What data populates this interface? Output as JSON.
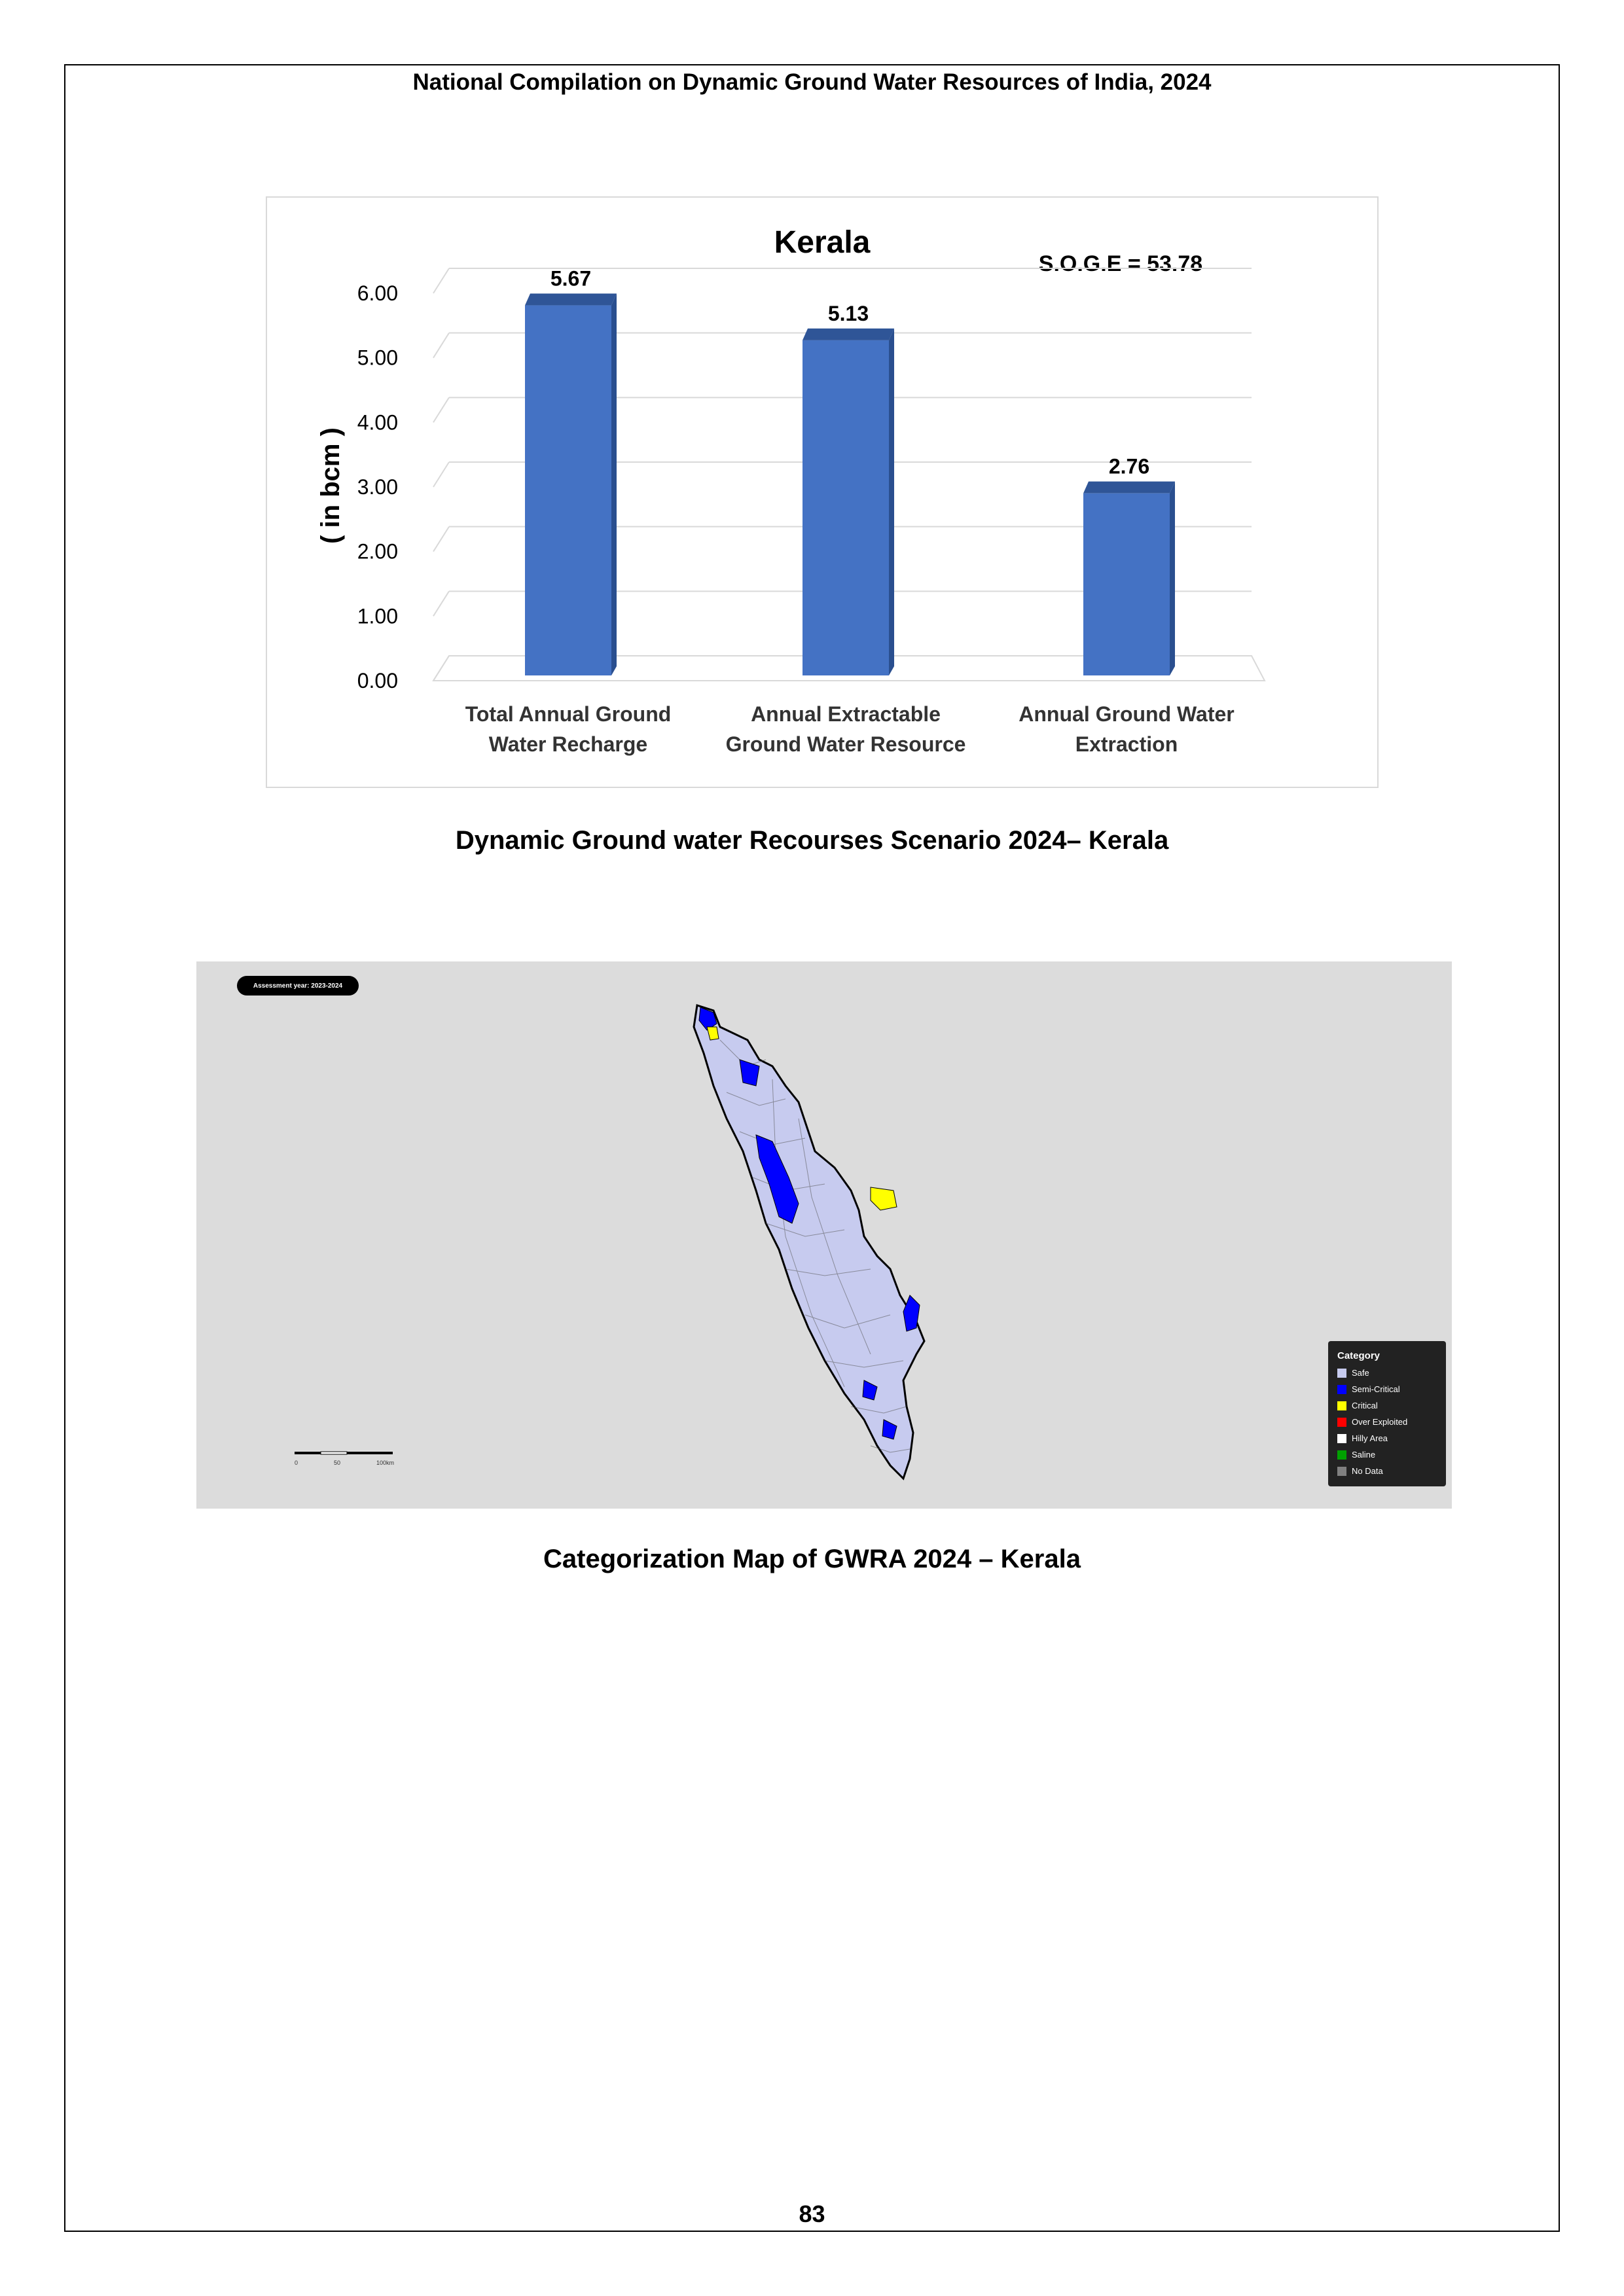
{
  "header": "National Compilation on Dynamic Ground Water Resources of India, 2024",
  "chart_data": {
    "type": "bar",
    "title": "Kerala",
    "annotation": "S.O.G.E = 53.78",
    "ylabel": "( in bcm )",
    "ylim": [
      0,
      6
    ],
    "yticks": [
      "0.00",
      "1.00",
      "2.00",
      "3.00",
      "4.00",
      "5.00",
      "6.00"
    ],
    "categories": [
      [
        "Total Annual  Ground",
        "Water Recharge"
      ],
      [
        "Annual Extractable",
        "Ground Water Resource"
      ],
      [
        "Annual Ground Water",
        "Extraction"
      ]
    ],
    "values": [
      5.67,
      5.13,
      2.76
    ],
    "value_labels": [
      "5.67",
      "5.13",
      "2.76"
    ],
    "colors": {
      "bar": "#4472c4",
      "bar_top": "#2f5597",
      "bar_side": "#2a4f8f",
      "grid": "#d9d9d9"
    }
  },
  "chart_caption": "Dynamic Ground water Recourses Scenario 2024– Kerala",
  "map": {
    "assessment_label": "Assessment year: 2023-2024",
    "legend_title": "Category",
    "legend": [
      {
        "label": "Safe",
        "color": "#c7cbef"
      },
      {
        "label": "Semi-Critical",
        "color": "#0000ff"
      },
      {
        "label": "Critical",
        "color": "#ffff00"
      },
      {
        "label": "Over Exploited",
        "color": "#ff0000"
      },
      {
        "label": "Hilly Area",
        "color": "#ffffff"
      },
      {
        "label": "Saline",
        "color": "#00a000"
      },
      {
        "label": "No Data",
        "color": "#808080"
      }
    ],
    "scale_labels": [
      "0",
      "50",
      "100km"
    ]
  },
  "map_caption": "Categorization Map of GWRA 2024 – Kerala",
  "page_number": "83"
}
